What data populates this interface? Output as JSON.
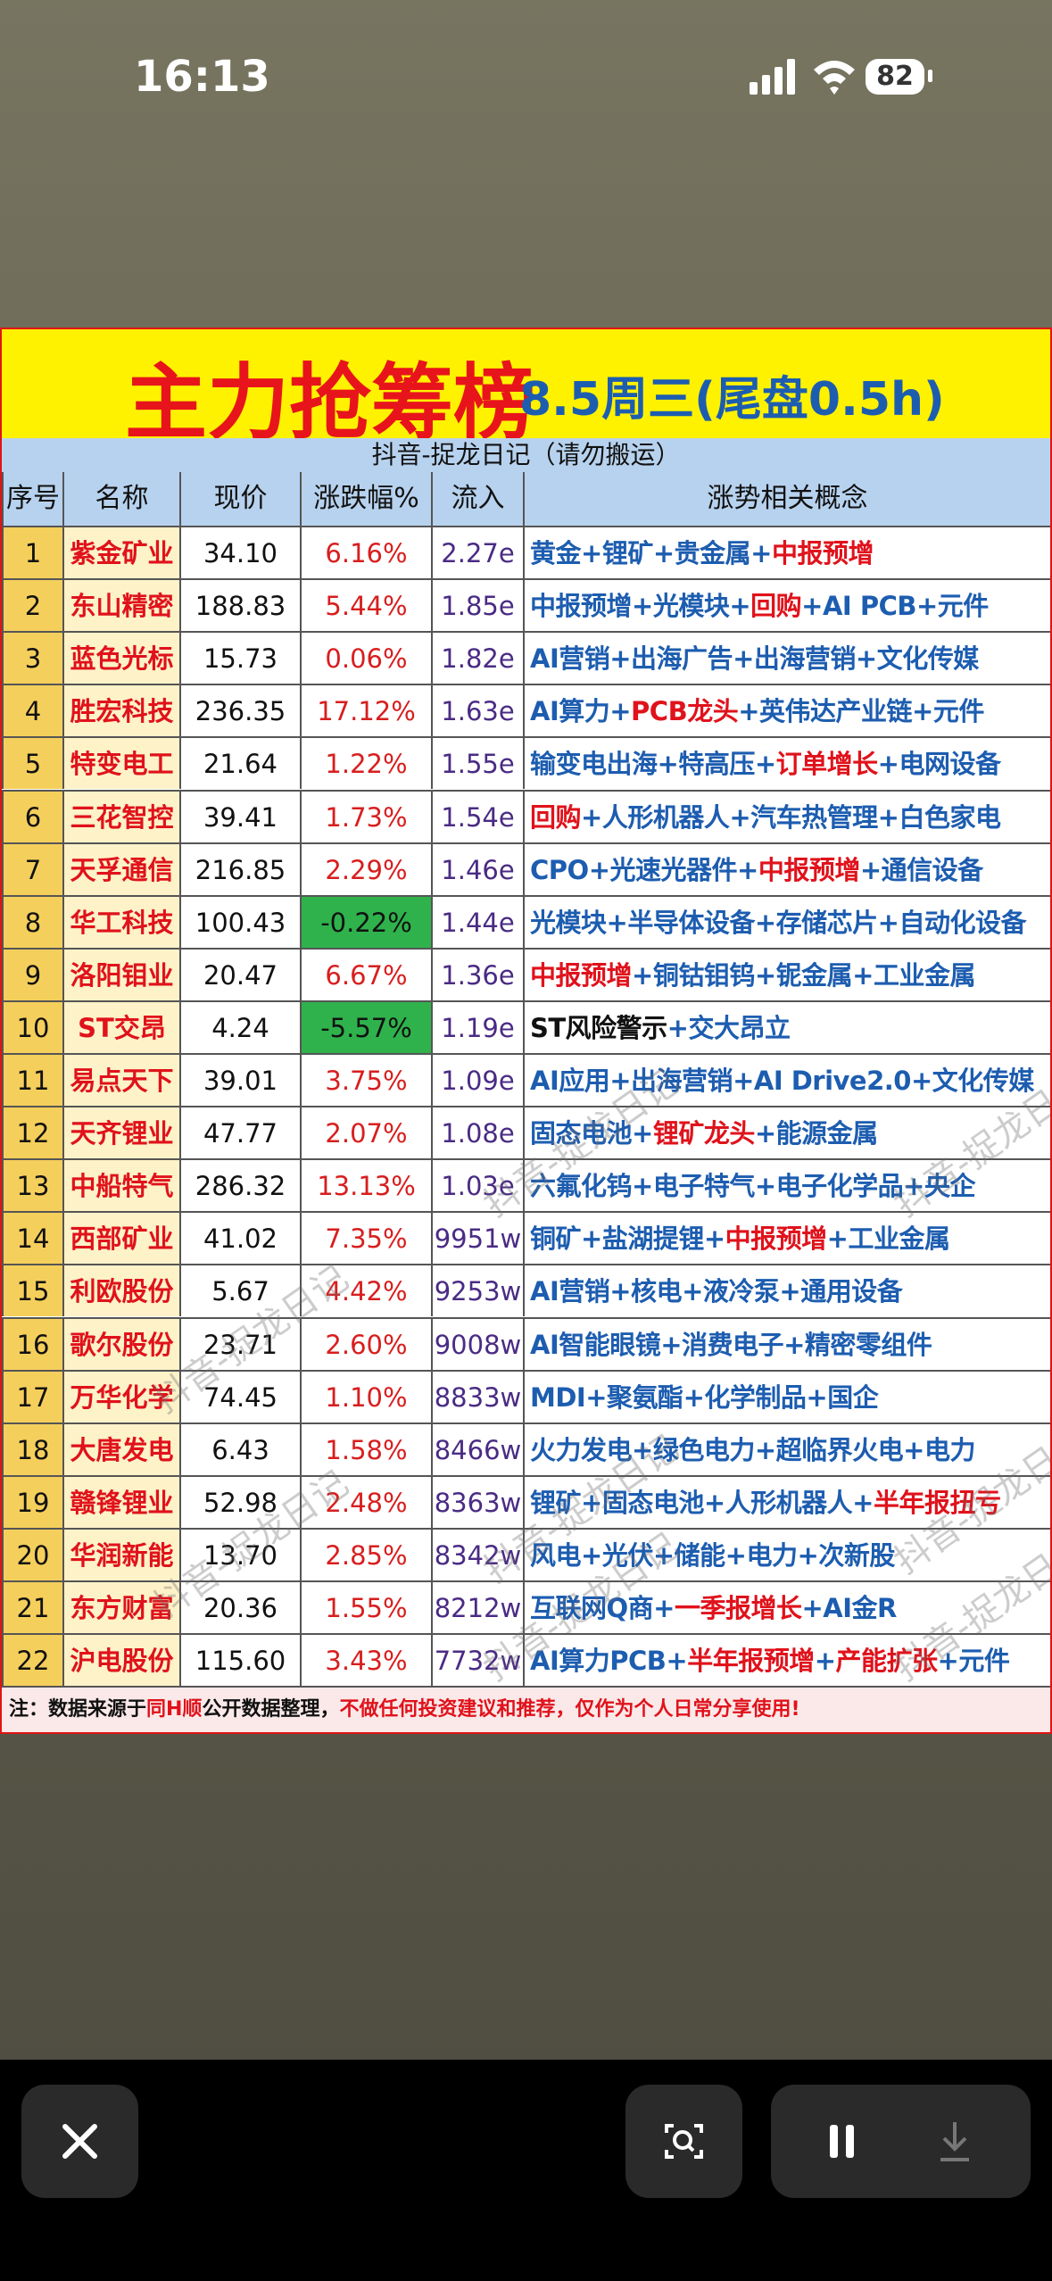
{
  "status_bar": {
    "time": "16:13",
    "battery": "82"
  },
  "watermark": "抖音-捉龙日记",
  "table": {
    "title": "主力抢筹榜",
    "subtitle": "8.5周三(尾盘0.5h)",
    "source": "抖音-捉龙日记（请勿搬运）",
    "headers": [
      "序号",
      "名称",
      "现价",
      "涨跌幅%",
      "流入",
      "涨势相关概念"
    ],
    "separator": "+",
    "rows": [
      {
        "rank": "1",
        "name": "紫金矿业",
        "price": "34.10",
        "change": "6.16%",
        "inflow": "2.27e",
        "concepts": [
          "黄金",
          "锂矿",
          "贵金属",
          {
            "text": "中报预增",
            "color": "#e0121b"
          }
        ]
      },
      {
        "rank": "2",
        "name": "东山精密",
        "price": "188.83",
        "change": "5.44%",
        "inflow": "1.85e",
        "concepts": [
          "中报预增",
          "光模块",
          {
            "text": "回购",
            "color": "#e0121b"
          },
          "AI PCB",
          "元件"
        ]
      },
      {
        "rank": "3",
        "name": "蓝色光标",
        "price": "15.73",
        "change": "0.06%",
        "inflow": "1.82e",
        "concepts": [
          "AI营销",
          "出海广告",
          "出海营销",
          "文化传媒"
        ]
      },
      {
        "rank": "4",
        "name": "胜宏科技",
        "price": "236.35",
        "change": "17.12%",
        "inflow": "1.63e",
        "concepts": [
          "AI算力",
          {
            "text": "PCB龙头",
            "color": "#e0121b"
          },
          "英伟达产业链",
          "元件"
        ]
      },
      {
        "rank": "5",
        "name": "特变电工",
        "price": "21.64",
        "change": "1.22%",
        "inflow": "1.55e",
        "concepts": [
          "输变电出海",
          "特高压",
          {
            "text": "订单增长",
            "color": "#e0121b"
          },
          "电网设备"
        ]
      },
      {
        "rank": "6",
        "name": "三花智控",
        "price": "39.41",
        "change": "1.73%",
        "inflow": "1.54e",
        "concepts": [
          {
            "text": "回购",
            "color": "#e0121b"
          },
          "人形机器人",
          "汽车热管理",
          "白色家电"
        ]
      },
      {
        "rank": "7",
        "name": "天孚通信",
        "price": "216.85",
        "change": "2.29%",
        "inflow": "1.46e",
        "concepts": [
          "CPO",
          "光速光器件",
          {
            "text": "中报预增",
            "color": "#e0121b"
          },
          "通信设备"
        ]
      },
      {
        "rank": "8",
        "name": "华工科技",
        "price": "100.43",
        "change": "-0.22%",
        "inflow": "1.44e",
        "concepts": [
          "光模块",
          "半导体设备",
          "存储芯片",
          "自动化设备"
        ]
      },
      {
        "rank": "9",
        "name": "洛阳钼业",
        "price": "20.47",
        "change": "6.67%",
        "inflow": "1.36e",
        "concepts": [
          {
            "text": "中报预增",
            "color": "#e0121b"
          },
          "铜钴钼钨",
          "铌金属",
          "工业金属"
        ]
      },
      {
        "rank": "10",
        "name": "ST交昂",
        "price": "4.24",
        "change": "-5.57%",
        "inflow": "1.19e",
        "concepts": [
          {
            "text": "ST风险警示",
            "color": "#111111"
          },
          "交大昂立"
        ]
      },
      {
        "rank": "11",
        "name": "易点天下",
        "price": "39.01",
        "change": "3.75%",
        "inflow": "1.09e",
        "concepts": [
          "AI应用",
          "出海营销",
          "AI Drive2.0",
          "文化传媒"
        ]
      },
      {
        "rank": "12",
        "name": "天齐锂业",
        "price": "47.77",
        "change": "2.07%",
        "inflow": "1.08e",
        "concepts": [
          "固态电池",
          {
            "text": "锂矿龙头",
            "color": "#e0121b"
          },
          "能源金属"
        ]
      },
      {
        "rank": "13",
        "name": "中船特气",
        "price": "286.32",
        "change": "13.13%",
        "inflow": "1.03e",
        "concepts": [
          "六氟化钨",
          "电子特气",
          "电子化学品",
          "央企"
        ]
      },
      {
        "rank": "14",
        "name": "西部矿业",
        "price": "41.02",
        "change": "7.35%",
        "inflow": "9951w",
        "concepts": [
          "铜矿",
          "盐湖提锂",
          {
            "text": "中报预增",
            "color": "#e0121b"
          },
          "工业金属"
        ]
      },
      {
        "rank": "15",
        "name": "利欧股份",
        "price": "5.67",
        "change": "4.42%",
        "inflow": "9253w",
        "concepts": [
          "AI营销",
          "核电",
          "液冷泵",
          "通用设备"
        ]
      },
      {
        "rank": "16",
        "name": "歌尔股份",
        "price": "23.71",
        "change": "2.60%",
        "inflow": "9008w",
        "concepts": [
          "AI智能眼镜",
          "消费电子",
          "精密零组件"
        ]
      },
      {
        "rank": "17",
        "name": "万华化学",
        "price": "74.45",
        "change": "1.10%",
        "inflow": "8833w",
        "concepts": [
          "MDI",
          "聚氨酯",
          "化学制品",
          "国企"
        ]
      },
      {
        "rank": "18",
        "name": "大唐发电",
        "price": "6.43",
        "change": "1.58%",
        "inflow": "8466w",
        "concepts": [
          "火力发电",
          "绿色电力",
          "超临界火电",
          "电力"
        ]
      },
      {
        "rank": "19",
        "name": "赣锋锂业",
        "price": "52.98",
        "change": "2.48%",
        "inflow": "8363w",
        "concepts": [
          "锂矿",
          "固态电池",
          "人形机器人",
          {
            "text": "半年报扭亏",
            "color": "#e0121b"
          }
        ]
      },
      {
        "rank": "20",
        "name": "华润新能",
        "price": "13.70",
        "change": "2.85%",
        "inflow": "8342w",
        "concepts": [
          "风电",
          "光伏",
          "储能",
          "电力",
          "次新股"
        ]
      },
      {
        "rank": "21",
        "name": "东方财富",
        "price": "20.36",
        "change": "1.55%",
        "inflow": "8212w",
        "concepts": [
          "互联网Q商",
          {
            "text": "一季报增长",
            "color": "#e0121b"
          },
          "AI金R"
        ]
      },
      {
        "rank": "22",
        "name": "沪电股份",
        "price": "115.60",
        "change": "3.43%",
        "inflow": "7732w",
        "concepts": [
          "AI算力PCB",
          {
            "text": "半年报预增",
            "color": "#e0121b"
          },
          {
            "text": "产能扩张",
            "color": "#e0121b"
          },
          "元件"
        ]
      }
    ],
    "footer": [
      "注：数据来源于",
      {
        "text": "同H顺",
        "color": "#e0121b"
      },
      "公开数据整理，",
      {
        "text": "不做任何投资建议和推荐，仅作为个人日常分享使用!",
        "color": "#e0121b"
      }
    ]
  }
}
